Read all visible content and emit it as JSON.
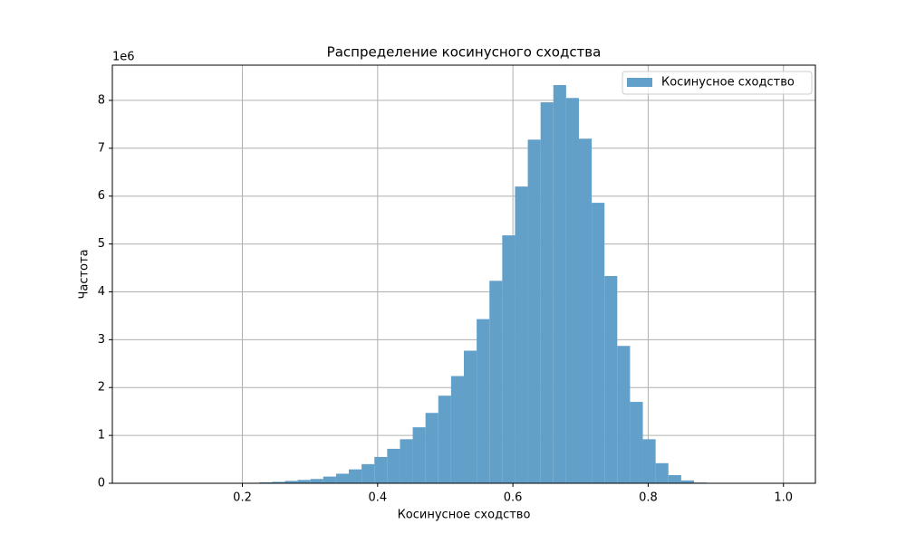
{
  "chart_data": {
    "type": "histogram",
    "title": "Распределение косинусного сходства",
    "xlabel": "Косинусное сходство",
    "ylabel": "Частота",
    "y_offset_label": "1e6",
    "series": [
      {
        "name": "Косинусное сходство",
        "color": "#62a0ca",
        "bins": [
          0.055,
          0.0739,
          0.0928,
          0.1117,
          0.1306,
          0.1495,
          0.1684,
          0.1873,
          0.2062,
          0.2251,
          0.244,
          0.2629,
          0.2818,
          0.3007,
          0.3196,
          0.3385,
          0.3574,
          0.3763,
          0.3952,
          0.4141,
          0.433,
          0.4519,
          0.4708,
          0.4897,
          0.5086,
          0.5275,
          0.5464,
          0.5653,
          0.5842,
          0.6031,
          0.622,
          0.6409,
          0.6598,
          0.6787,
          0.6976,
          0.7165,
          0.7354,
          0.7543,
          0.7732,
          0.7921,
          0.811,
          0.8299,
          0.8488,
          0.8677,
          0.8866,
          0.9055,
          0.9244,
          0.9433,
          0.9622,
          0.9811,
          1.0
        ],
        "counts": [
          0,
          0,
          0,
          1000,
          1000,
          2000,
          3000,
          5000,
          10000,
          20000,
          30000,
          50000,
          70000,
          90000,
          140000,
          200000,
          290000,
          400000,
          550000,
          720000,
          920000,
          1170000,
          1470000,
          1830000,
          2240000,
          2770000,
          3430000,
          4230000,
          5180000,
          6200000,
          7180000,
          7960000,
          8320000,
          8050000,
          7200000,
          5860000,
          4330000,
          2870000,
          1700000,
          920000,
          420000,
          170000,
          60000,
          15000,
          3000,
          1000,
          0,
          0,
          0,
          0
        ]
      }
    ],
    "xlim": [
      0.00775,
      1.04725
    ],
    "xticks": [
      0.2,
      0.4,
      0.6,
      0.8,
      {
        "value": 1,
        "label": "1.0"
      }
    ],
    "ylim": [
      0,
      8736000
    ],
    "yticks": [
      {
        "value": 0,
        "label": "0"
      },
      {
        "value": 1000000,
        "label": "1"
      },
      {
        "value": 2000000,
        "label": "2"
      },
      {
        "value": 3000000,
        "label": "3"
      },
      {
        "value": 4000000,
        "label": "4"
      },
      {
        "value": 5000000,
        "label": "5"
      },
      {
        "value": 6000000,
        "label": "6"
      },
      {
        "value": 7000000,
        "label": "7"
      },
      {
        "value": 8000000,
        "label": "8"
      }
    ],
    "grid": true,
    "legend": "upper right"
  }
}
